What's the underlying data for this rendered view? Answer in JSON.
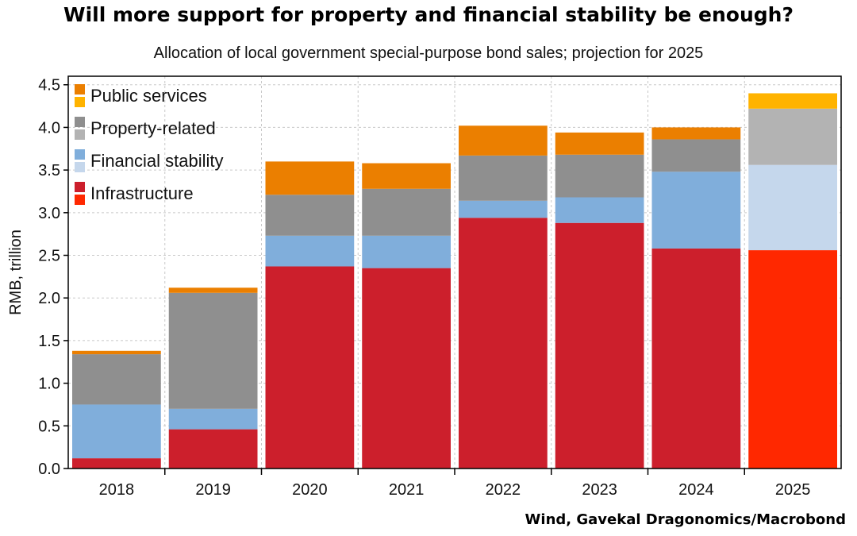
{
  "title": "Will more support for property and financial stability be enough?",
  "subtitle": "Allocation of local government special-purpose bond sales; projection for 2025",
  "source": "Wind, Gavekal Dragonomics/Macrobond",
  "chart_data": {
    "type": "bar",
    "stacked": true,
    "ylabel": "RMB, trillion",
    "ylim": [
      0,
      4.6
    ],
    "yticks": [
      "0.0",
      "0.5",
      "1.0",
      "1.5",
      "2.0",
      "2.5",
      "3.0",
      "3.5",
      "4.0",
      "4.5"
    ],
    "categories": [
      "2018",
      "2019",
      "2020",
      "2021",
      "2022",
      "2023",
      "2024",
      "2025"
    ],
    "projection_category": "2025",
    "grid": true,
    "legend_position": "top-left",
    "series": [
      {
        "name": "Infrastructure",
        "values": [
          0.12,
          0.46,
          2.37,
          2.35,
          2.94,
          2.88,
          2.58,
          2.56
        ],
        "color": "#cc1f2c",
        "projection_color": "#ff2800"
      },
      {
        "name": "Financial stability",
        "values": [
          0.63,
          0.24,
          0.36,
          0.38,
          0.2,
          0.3,
          0.9,
          1.0
        ],
        "color": "#80aedb",
        "projection_color": "#c5d7ec"
      },
      {
        "name": "Property-related",
        "values": [
          0.59,
          1.36,
          0.48,
          0.55,
          0.53,
          0.5,
          0.38,
          0.66
        ],
        "color": "#8f8f8f",
        "projection_color": "#b3b3b3"
      },
      {
        "name": "Public services",
        "values": [
          0.04,
          0.06,
          0.39,
          0.3,
          0.35,
          0.26,
          0.14,
          0.18
        ],
        "color": "#eb7f00",
        "projection_color": "#ffb300"
      }
    ]
  }
}
